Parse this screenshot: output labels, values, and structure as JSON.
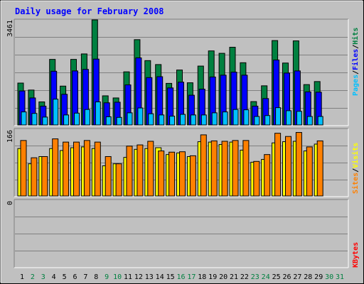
{
  "title": "Daily usage for February 2008",
  "colors": {
    "background": "#c0c0c0",
    "title": "#0000ff",
    "hits": "#008040",
    "files": "#0000ff",
    "pages": "#00c0ff",
    "visits": "#ffff00",
    "sites": "#ff8000",
    "kbytes": "#ff0000",
    "weekday_label": "#000000",
    "weekend_label": "#008040"
  },
  "chart_data": [
    {
      "type": "bar",
      "panel": "hits-files-pages",
      "y_max_label": "3461",
      "ylim": [
        0,
        3461
      ],
      "legend": [
        "Pages",
        "/",
        "Files",
        "/",
        "Hits"
      ],
      "categories": [
        "1",
        "2",
        "3",
        "4",
        "5",
        "6",
        "7",
        "8",
        "9",
        "10",
        "11",
        "12",
        "13",
        "14",
        "15",
        "16",
        "17",
        "18",
        "19",
        "20",
        "21",
        "22",
        "23",
        "24",
        "25",
        "26",
        "27",
        "28",
        "29",
        "30",
        "31"
      ],
      "series": [
        {
          "name": "Hits",
          "values": [
            1380,
            1150,
            760,
            2160,
            1280,
            2160,
            2340,
            3461,
            960,
            890,
            1750,
            2810,
            2120,
            1990,
            1370,
            1810,
            1390,
            1940,
            2440,
            2360,
            2560,
            2050,
            770,
            1290,
            2780,
            2040,
            2770,
            1330,
            1430,
            null,
            null
          ]
        },
        {
          "name": "Files",
          "values": [
            1120,
            890,
            620,
            1770,
            1010,
            1780,
            1830,
            2170,
            730,
            750,
            1320,
            2210,
            1560,
            1590,
            1220,
            1410,
            980,
            1180,
            1580,
            1640,
            1740,
            1640,
            620,
            870,
            2140,
            1710,
            1780,
            1090,
            1080,
            null,
            null
          ]
        },
        {
          "name": "Pages",
          "values": [
            430,
            380,
            260,
            850,
            330,
            390,
            510,
            760,
            270,
            250,
            400,
            560,
            370,
            330,
            290,
            350,
            330,
            330,
            400,
            430,
            510,
            500,
            280,
            310,
            570,
            470,
            450,
            280,
            280,
            null,
            null
          ]
        }
      ]
    },
    {
      "type": "bar",
      "panel": "visits-sites",
      "y_max_label": "166",
      "ylim": [
        0,
        166
      ],
      "legend": [
        "Sites",
        "/",
        "Visits"
      ],
      "categories": [
        "1",
        "2",
        "3",
        "4",
        "5",
        "6",
        "7",
        "8",
        "9",
        "10",
        "11",
        "12",
        "13",
        "14",
        "15",
        "16",
        "17",
        "18",
        "19",
        "20",
        "21",
        "22",
        "23",
        "24",
        "25",
        "26",
        "27",
        "28",
        "29",
        "30",
        "31"
      ],
      "series": [
        {
          "name": "Visits",
          "values": [
            118,
            80,
            98,
            118,
            113,
            120,
            122,
            118,
            75,
            80,
            96,
            116,
            118,
            120,
            103,
            107,
            98,
            135,
            134,
            128,
            134,
            114,
            84,
            91,
            132,
            135,
            136,
            112,
            129,
            null,
            null
          ]
        },
        {
          "name": "Sites",
          "values": [
            138,
            95,
            98,
            142,
            134,
            134,
            138,
            134,
            98,
            80,
            124,
            127,
            136,
            112,
            109,
            110,
            100,
            152,
            137,
            136,
            138,
            138,
            86,
            103,
            156,
            148,
            158,
            122,
            137,
            null,
            null
          ]
        }
      ]
    },
    {
      "type": "bar",
      "panel": "kbytes",
      "y_max_label": "0",
      "ylim": [
        0,
        1
      ],
      "legend": [
        "KBytes"
      ],
      "categories": [
        "1",
        "2",
        "3",
        "4",
        "5",
        "6",
        "7",
        "8",
        "9",
        "10",
        "11",
        "12",
        "13",
        "14",
        "15",
        "16",
        "17",
        "18",
        "19",
        "20",
        "21",
        "22",
        "23",
        "24",
        "25",
        "26",
        "27",
        "28",
        "29",
        "30",
        "31"
      ],
      "series": [
        {
          "name": "KBytes",
          "values": [
            0,
            0,
            0,
            0,
            0,
            0,
            0,
            0,
            0,
            0,
            0,
            0,
            0,
            0,
            0,
            0,
            0,
            0,
            0,
            0,
            0,
            0,
            0,
            0,
            0,
            0,
            0,
            0,
            0,
            null,
            null
          ]
        }
      ]
    }
  ],
  "x_axis": {
    "labels": [
      "1",
      "2",
      "3",
      "4",
      "5",
      "6",
      "7",
      "8",
      "9",
      "10",
      "11",
      "12",
      "13",
      "14",
      "15",
      "16",
      "17",
      "18",
      "19",
      "20",
      "21",
      "22",
      "23",
      "24",
      "25",
      "26",
      "27",
      "28",
      "29",
      "30",
      "31"
    ],
    "weekend": [
      false,
      true,
      true,
      false,
      false,
      false,
      false,
      false,
      true,
      true,
      false,
      false,
      false,
      false,
      false,
      true,
      true,
      false,
      false,
      false,
      false,
      false,
      true,
      true,
      false,
      false,
      false,
      false,
      false,
      true,
      true
    ]
  }
}
